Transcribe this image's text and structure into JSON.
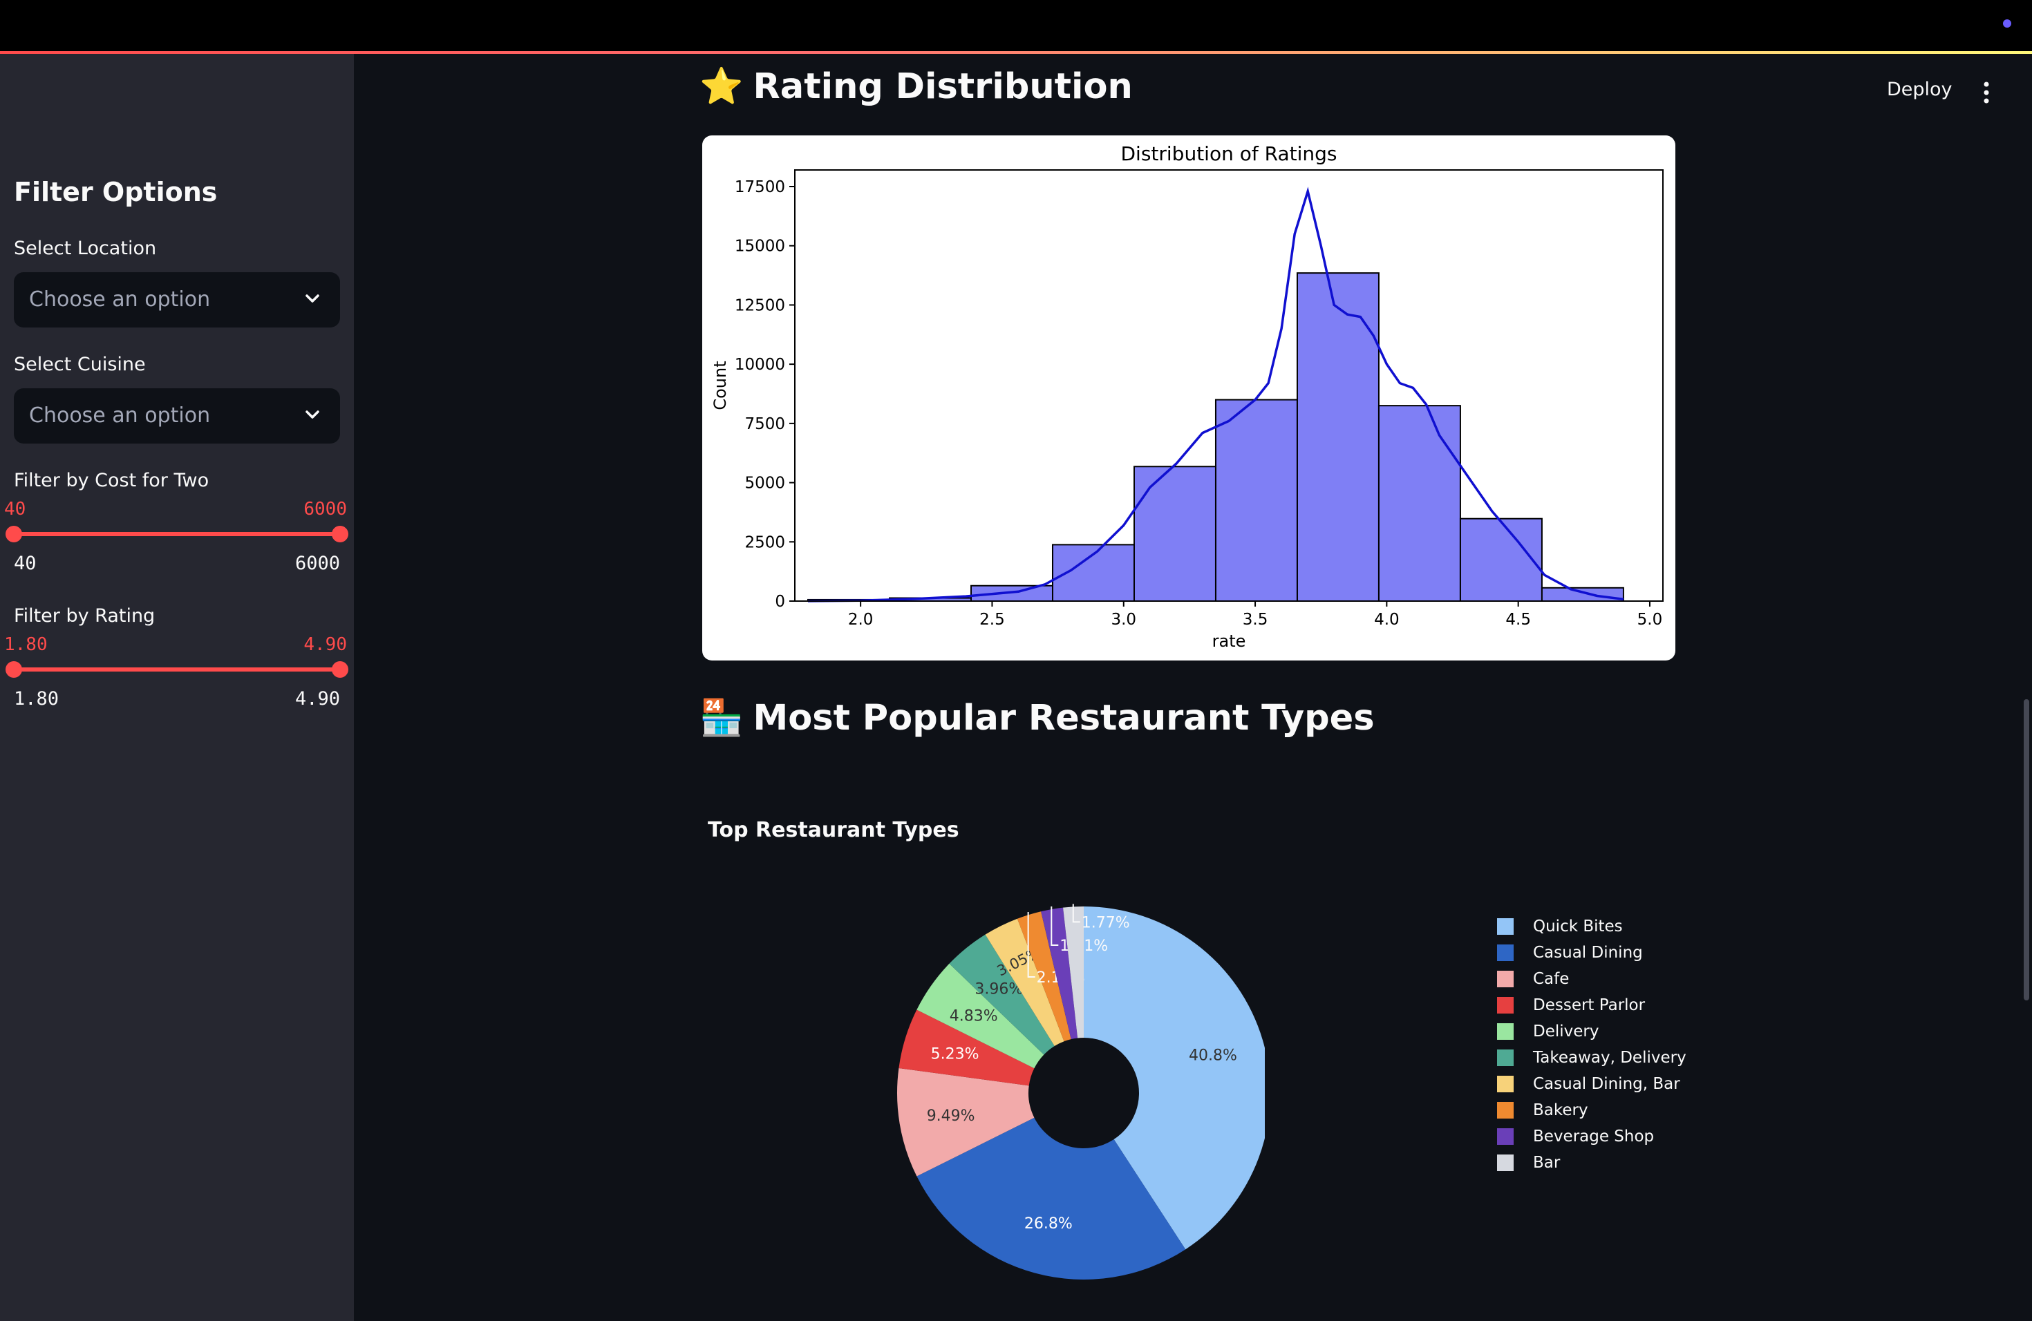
{
  "sidebar": {
    "title": "Filter Options",
    "location": {
      "label": "Select Location",
      "placeholder": "Choose an option"
    },
    "cuisine": {
      "label": "Select Cuisine",
      "placeholder": "Choose an option"
    },
    "cost": {
      "label": "Filter by Cost for Two",
      "low": "40",
      "high": "6000",
      "min": "40",
      "max": "6000"
    },
    "rating": {
      "label": "Filter by Rating",
      "low": "1.80",
      "high": "4.90",
      "min": "1.80",
      "max": "4.90"
    }
  },
  "header": {
    "deploy_label": "Deploy"
  },
  "sections": {
    "rating_title": "Rating Distribution",
    "rating_emoji": "⭐",
    "types_title": "Most Popular Restaurant Types",
    "types_emoji": "🏪"
  },
  "chart_data": [
    {
      "type": "bar",
      "title": "Distribution of Ratings",
      "xlabel": "rate",
      "ylabel": "Count",
      "xlim": [
        1.75,
        5.05
      ],
      "ylim": [
        0,
        18200
      ],
      "xticks": [
        "2.0",
        "2.5",
        "3.0",
        "3.5",
        "4.0",
        "4.5",
        "5.0"
      ],
      "yticks": [
        "0",
        "2500",
        "5000",
        "7500",
        "10000",
        "12500",
        "15000",
        "17500"
      ],
      "bins": [
        {
          "x0": 1.8,
          "x1": 2.11,
          "value": 60
        },
        {
          "x0": 2.11,
          "x1": 2.42,
          "value": 130
        },
        {
          "x0": 2.42,
          "x1": 2.73,
          "value": 650
        },
        {
          "x0": 2.73,
          "x1": 3.04,
          "value": 2380
        },
        {
          "x0": 3.04,
          "x1": 3.35,
          "value": 5680
        },
        {
          "x0": 3.35,
          "x1": 3.66,
          "value": 8500
        },
        {
          "x0": 3.66,
          "x1": 3.97,
          "value": 13850
        },
        {
          "x0": 3.97,
          "x1": 4.28,
          "value": 8250
        },
        {
          "x0": 4.28,
          "x1": 4.59,
          "value": 3480
        },
        {
          "x0": 4.59,
          "x1": 4.9,
          "value": 560
        }
      ],
      "kde": [
        [
          1.8,
          0
        ],
        [
          2.0,
          20
        ],
        [
          2.2,
          90
        ],
        [
          2.4,
          200
        ],
        [
          2.6,
          400
        ],
        [
          2.7,
          700
        ],
        [
          2.8,
          1300
        ],
        [
          2.9,
          2100
        ],
        [
          3.0,
          3200
        ],
        [
          3.1,
          4800
        ],
        [
          3.2,
          5800
        ],
        [
          3.3,
          7100
        ],
        [
          3.4,
          7600
        ],
        [
          3.5,
          8500
        ],
        [
          3.55,
          9200
        ],
        [
          3.6,
          11500
        ],
        [
          3.65,
          15500
        ],
        [
          3.7,
          17300
        ],
        [
          3.75,
          15000
        ],
        [
          3.8,
          12500
        ],
        [
          3.85,
          12100
        ],
        [
          3.9,
          12000
        ],
        [
          3.95,
          11200
        ],
        [
          4.0,
          10000
        ],
        [
          4.05,
          9200
        ],
        [
          4.1,
          9000
        ],
        [
          4.15,
          8300
        ],
        [
          4.2,
          7000
        ],
        [
          4.3,
          5400
        ],
        [
          4.4,
          3800
        ],
        [
          4.5,
          2500
        ],
        [
          4.6,
          1100
        ],
        [
          4.7,
          500
        ],
        [
          4.8,
          220
        ],
        [
          4.9,
          80
        ]
      ],
      "bar_color": "#7f7ff5",
      "line_color": "#1010d0"
    },
    {
      "type": "pie",
      "title": "Top Restaurant Types",
      "slices": [
        {
          "name": "Quick Bites",
          "value": 40.8,
          "label": "40.8%",
          "color": "#93c5f7"
        },
        {
          "name": "Casual Dining",
          "value": 26.8,
          "label": "26.8%",
          "color": "#2e66c5"
        },
        {
          "name": "Cafe",
          "value": 9.49,
          "label": "9.49%",
          "color": "#f2aaaa"
        },
        {
          "name": "Dessert Parlor",
          "value": 5.23,
          "label": "5.23%",
          "color": "#e64040"
        },
        {
          "name": "Delivery",
          "value": 4.83,
          "label": "4.83%",
          "color": "#9ae6a0"
        },
        {
          "name": "Takeaway, Delivery",
          "value": 3.96,
          "label": "3.96%",
          "color": "#4faa94"
        },
        {
          "name": "Casual Dining, Bar",
          "value": 3.05,
          "label": "3.05%",
          "color": "#f7d27a"
        },
        {
          "name": "Bakery",
          "value": 2.11,
          "label": "2.11%",
          "color": "#ef8a30"
        },
        {
          "name": "Beverage Shop",
          "value": 1.91,
          "label": "1.91%",
          "color": "#6a3fb8"
        },
        {
          "name": "Bar",
          "value": 1.77,
          "label": "1.77%",
          "color": "#d6d9e0"
        }
      ]
    }
  ]
}
